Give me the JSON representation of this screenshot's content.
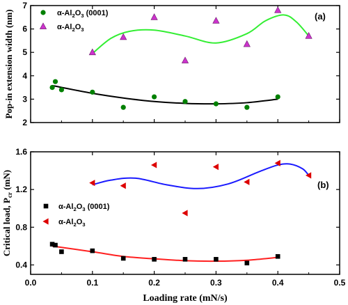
{
  "chart_data": [
    {
      "panel": "(a)",
      "type": "scatter",
      "ylabel": "Pop-in extension width (nm)",
      "xlabel": "",
      "xlim": [
        0.0,
        0.5
      ],
      "ylim": [
        2,
        7
      ],
      "xticks": [
        "0.0",
        "0.1",
        "0.2",
        "0.3",
        "0.4",
        "0.5"
      ],
      "yticks": [
        "2",
        "3",
        "4",
        "5",
        "6",
        "7"
      ],
      "xtick_labels_shown": false,
      "grid": false,
      "legend_position": "top-left",
      "series": [
        {
          "name_parts": [
            "α-Al",
            "2",
            "O",
            "3",
            " (0001)"
          ],
          "marker": "circle",
          "color": "#008000",
          "x": [
            0.035,
            0.04,
            0.05,
            0.1,
            0.15,
            0.2,
            0.25,
            0.3,
            0.35,
            0.4
          ],
          "y": [
            3.5,
            3.75,
            3.4,
            3.3,
            2.65,
            3.1,
            2.9,
            2.8,
            2.65,
            3.1
          ]
        },
        {
          "name_parts": [
            "α-Al",
            "2",
            "O",
            "3",
            ""
          ],
          "marker": "triangle-up",
          "color": "#cc33cc",
          "x": [
            0.1,
            0.15,
            0.2,
            0.25,
            0.3,
            0.35,
            0.4,
            0.45
          ],
          "y": [
            5.0,
            5.65,
            6.5,
            4.65,
            6.35,
            5.35,
            6.8,
            5.7
          ]
        }
      ],
      "fits": [
        {
          "color": "#000000",
          "x": [
            0.035,
            0.1,
            0.15,
            0.2,
            0.25,
            0.3,
            0.35,
            0.4
          ],
          "y": [
            3.58,
            3.25,
            3.05,
            2.9,
            2.82,
            2.8,
            2.85,
            3.0
          ]
        },
        {
          "color": "#33ee33",
          "x": [
            0.1,
            0.13,
            0.16,
            0.2,
            0.25,
            0.3,
            0.35,
            0.38,
            0.41,
            0.43,
            0.45
          ],
          "y": [
            4.95,
            5.6,
            5.9,
            5.95,
            5.7,
            5.4,
            5.8,
            6.35,
            6.6,
            6.3,
            5.7
          ]
        }
      ]
    },
    {
      "panel": "(b)",
      "type": "scatter",
      "ylabel_parts": [
        "Critical load, P",
        "cr",
        " (mN)"
      ],
      "xlabel": "Loading rate (mN/s)",
      "xlim": [
        0.0,
        0.5
      ],
      "ylim": [
        0.3,
        1.6
      ],
      "xticks": [
        "0.0",
        "0.1",
        "0.2",
        "0.3",
        "0.4",
        "0.5"
      ],
      "yticks": [
        "0.4",
        "0.8",
        "1.2",
        "1.6"
      ],
      "yticks_values": [
        0.4,
        0.8,
        1.2,
        1.6
      ],
      "grid": false,
      "legend_position": "center-left",
      "series": [
        {
          "name_parts": [
            "α-Al",
            "2",
            "O",
            "3",
            " (0001)"
          ],
          "marker": "square",
          "color": "#000000",
          "x": [
            0.035,
            0.04,
            0.05,
            0.1,
            0.15,
            0.2,
            0.25,
            0.3,
            0.35,
            0.4
          ],
          "y": [
            0.62,
            0.61,
            0.54,
            0.55,
            0.47,
            0.46,
            0.46,
            0.46,
            0.42,
            0.49
          ]
        },
        {
          "name_parts": [
            "α-Al",
            "2",
            "O",
            "3",
            ""
          ],
          "marker": "triangle-left",
          "color": "#dd0000",
          "x": [
            0.1,
            0.15,
            0.2,
            0.25,
            0.3,
            0.35,
            0.4,
            0.45
          ],
          "y": [
            1.27,
            1.24,
            1.46,
            0.95,
            1.44,
            1.28,
            1.48,
            1.35
          ]
        }
      ],
      "fits": [
        {
          "color": "#ff2020",
          "x": [
            0.035,
            0.1,
            0.15,
            0.2,
            0.25,
            0.3,
            0.35,
            0.4
          ],
          "y": [
            0.6,
            0.54,
            0.49,
            0.465,
            0.445,
            0.44,
            0.45,
            0.48
          ]
        },
        {
          "color": "#1a1aff",
          "x": [
            0.1,
            0.13,
            0.17,
            0.22,
            0.27,
            0.32,
            0.37,
            0.4,
            0.42,
            0.44,
            0.45
          ],
          "y": [
            1.25,
            1.3,
            1.32,
            1.25,
            1.21,
            1.26,
            1.39,
            1.46,
            1.47,
            1.42,
            1.35
          ]
        }
      ]
    }
  ]
}
